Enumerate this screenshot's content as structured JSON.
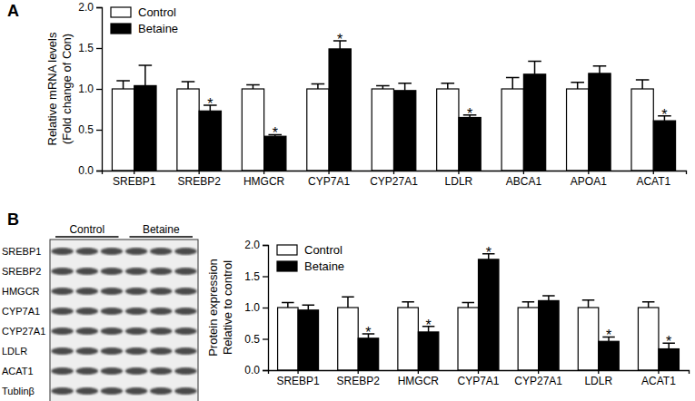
{
  "chart_data": [
    {
      "type": "bar",
      "panel": "A",
      "ylabel": [
        "Relative mRNA levels",
        "(Fold change of Con)"
      ],
      "categories": [
        "SREBP1",
        "SREBP2",
        "HMGCR",
        "CYP7A1",
        "CYP27A1",
        "LDLR",
        "ABCA1",
        "APOA1",
        "ACAT1"
      ],
      "series": [
        {
          "name": "Control",
          "color": "#ffffff",
          "values": [
            1.0,
            1.0,
            1.0,
            1.0,
            1.0,
            1.0,
            1.0,
            1.0,
            1.0
          ],
          "errors": [
            0.1,
            0.09,
            0.05,
            0.06,
            0.04,
            0.07,
            0.14,
            0.08,
            0.11
          ]
        },
        {
          "name": "Betaine",
          "color": "#000000",
          "values": [
            1.04,
            0.73,
            0.42,
            1.49,
            0.98,
            0.65,
            1.18,
            1.19,
            0.61
          ],
          "errors": [
            0.25,
            0.07,
            0.02,
            0.1,
            0.09,
            0.03,
            0.16,
            0.09,
            0.06
          ],
          "annotations": [
            {
              "index": 1,
              "text": "*"
            },
            {
              "index": 2,
              "text": "*"
            },
            {
              "index": 3,
              "text": "*"
            },
            {
              "index": 5,
              "text": "*"
            },
            {
              "index": 8,
              "text": "*"
            }
          ]
        }
      ],
      "ylim": [
        0,
        2
      ],
      "yticks": [
        {
          "value": 0,
          "label": "0.0"
        },
        {
          "value": 0.5,
          "label": "0.5"
        },
        {
          "value": 1,
          "label": "1.0"
        },
        {
          "value": 1.5,
          "label": "1.5"
        },
        {
          "value": 2,
          "label": "2.0"
        }
      ],
      "legend": "upper-left",
      "grid": false
    },
    {
      "type": "bar",
      "ylabel": [
        "Protein expression",
        "Relative to control"
      ],
      "categories": [
        "SREBP1",
        "SREBP2",
        "HMGCR",
        "CYP7A1",
        "CYP27A1",
        "LDLR",
        "ACAT1"
      ],
      "series": [
        {
          "name": "Control",
          "color": "#ffffff",
          "values": [
            1.0,
            1.0,
            1.0,
            1.0,
            1.0,
            1.0,
            1.0
          ],
          "errors": [
            0.08,
            0.17,
            0.09,
            0.08,
            0.09,
            0.12,
            0.09
          ]
        },
        {
          "name": "Betaine",
          "color": "#000000",
          "values": [
            0.96,
            0.51,
            0.61,
            1.77,
            1.11,
            0.46,
            0.34
          ],
          "errors": [
            0.08,
            0.07,
            0.09,
            0.09,
            0.08,
            0.07,
            0.09
          ],
          "annotations": [
            {
              "index": 1,
              "text": "*"
            },
            {
              "index": 2,
              "text": "*"
            },
            {
              "index": 3,
              "text": "*"
            },
            {
              "index": 5,
              "text": "*"
            },
            {
              "index": 6,
              "text": "*"
            }
          ]
        }
      ],
      "ylim": [
        0,
        2
      ],
      "yticks": [
        {
          "value": 0,
          "label": "0.0"
        },
        {
          "value": 0.5,
          "label": "0.5"
        },
        {
          "value": 1,
          "label": "1.0"
        },
        {
          "value": 1.5,
          "label": "1.5"
        },
        {
          "value": 2,
          "label": "2.0"
        }
      ],
      "legend": "upper-left",
      "grid": false
    }
  ],
  "blot": {
    "panel": "B",
    "groups": [
      "Control",
      "Betaine"
    ],
    "rows": [
      "SREBP1",
      "SREBP2",
      "HMGCR",
      "CYP7A1",
      "CYP27A1",
      "LDLR",
      "ACAT1",
      "Tublinβ"
    ]
  }
}
